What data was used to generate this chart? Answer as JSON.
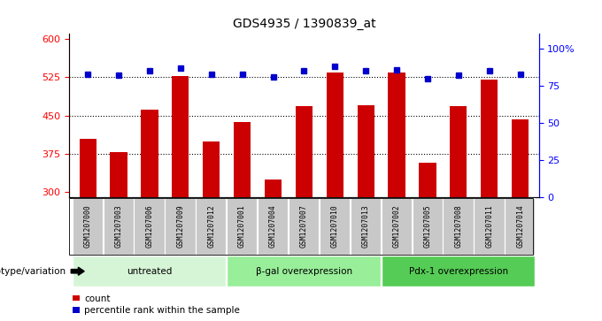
{
  "title": "GDS4935 / 1390839_at",
  "samples": [
    "GSM1207000",
    "GSM1207003",
    "GSM1207006",
    "GSM1207009",
    "GSM1207012",
    "GSM1207001",
    "GSM1207004",
    "GSM1207007",
    "GSM1207010",
    "GSM1207013",
    "GSM1207002",
    "GSM1207005",
    "GSM1207008",
    "GSM1207011",
    "GSM1207014"
  ],
  "counts": [
    405,
    378,
    462,
    528,
    400,
    437,
    325,
    468,
    535,
    470,
    535,
    358,
    468,
    520,
    443
  ],
  "percentiles": [
    83,
    82,
    85,
    87,
    83,
    83,
    81,
    85,
    88,
    85,
    86,
    80,
    82,
    85,
    83
  ],
  "groups": [
    {
      "label": "untreated",
      "start": 0,
      "end": 5
    },
    {
      "label": "β-gal overexpression",
      "start": 5,
      "end": 10
    },
    {
      "label": "Pdx-1 overexpression",
      "start": 10,
      "end": 15
    }
  ],
  "group_colors": [
    "#d6f5d6",
    "#99ee99",
    "#55cc55"
  ],
  "bar_color": "#cc0000",
  "dot_color": "#0000cc",
  "ylim_left": [
    290,
    610
  ],
  "ylim_right": [
    0,
    110
  ],
  "yticks_left": [
    300,
    375,
    450,
    525,
    600
  ],
  "yticks_right": [
    0,
    25,
    50,
    75,
    100
  ],
  "grid_values": [
    375,
    450,
    525
  ],
  "xlabel_area_label": "genotype/variation",
  "legend_count_label": "count",
  "legend_percentile_label": "percentile rank within the sample",
  "plot_bg": "#ffffff"
}
